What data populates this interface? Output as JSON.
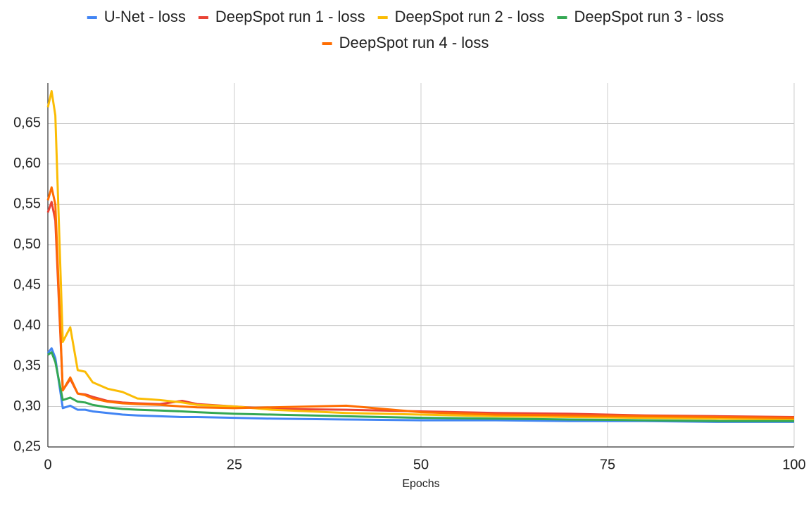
{
  "chart_data": {
    "type": "line",
    "x_label": "Epochs",
    "x": [
      0,
      0.5,
      1,
      2,
      3,
      4,
      5,
      6,
      8,
      10,
      12,
      15,
      18,
      20,
      25,
      30,
      40,
      50,
      60,
      70,
      80,
      90,
      100
    ],
    "series": [
      {
        "name": "U-Net - loss",
        "color": "#4285f4",
        "values": [
          0.366,
          0.372,
          0.36,
          0.298,
          0.301,
          0.296,
          0.296,
          0.294,
          0.292,
          0.29,
          0.289,
          0.288,
          0.287,
          0.287,
          0.286,
          0.285,
          0.284,
          0.283,
          0.283,
          0.282,
          0.282,
          0.281,
          0.281
        ]
      },
      {
        "name": "DeepSpot run 1 - loss",
        "color": "#ea4335",
        "values": [
          0.54,
          0.553,
          0.53,
          0.32,
          0.334,
          0.316,
          0.315,
          0.312,
          0.307,
          0.305,
          0.304,
          0.303,
          0.307,
          0.303,
          0.3,
          0.297,
          0.296,
          0.294,
          0.292,
          0.291,
          0.289,
          0.288,
          0.287
        ]
      },
      {
        "name": "DeepSpot run 2 - loss",
        "color": "#fbbc04",
        "values": [
          0.67,
          0.69,
          0.66,
          0.38,
          0.398,
          0.345,
          0.343,
          0.33,
          0.322,
          0.318,
          0.31,
          0.308,
          0.305,
          0.302,
          0.3,
          0.296,
          0.292,
          0.29,
          0.288,
          0.287,
          0.286,
          0.285,
          0.284
        ]
      },
      {
        "name": "DeepSpot run 3 - loss",
        "color": "#34a853",
        "values": [
          0.364,
          0.367,
          0.355,
          0.308,
          0.311,
          0.306,
          0.305,
          0.302,
          0.299,
          0.297,
          0.296,
          0.295,
          0.294,
          0.293,
          0.291,
          0.29,
          0.288,
          0.286,
          0.285,
          0.284,
          0.283,
          0.282,
          0.282
        ]
      },
      {
        "name": "DeepSpot run 4 - loss",
        "color": "#ff6d01",
        "values": [
          0.555,
          0.571,
          0.55,
          0.32,
          0.336,
          0.316,
          0.314,
          0.31,
          0.306,
          0.304,
          0.303,
          0.302,
          0.3,
          0.299,
          0.298,
          0.299,
          0.301,
          0.293,
          0.29,
          0.289,
          0.288,
          0.287,
          0.286
        ]
      }
    ],
    "xlim": [
      0,
      100
    ],
    "xticks": [
      0,
      25,
      50,
      75,
      100
    ],
    "ylim": [
      0.25,
      0.7
    ],
    "yticks": [
      {
        "value": 0.25,
        "label": "0,25"
      },
      {
        "value": 0.3,
        "label": "0,30"
      },
      {
        "value": 0.35,
        "label": "0,35"
      },
      {
        "value": 0.4,
        "label": "0,40"
      },
      {
        "value": 0.45,
        "label": "0,45"
      },
      {
        "value": 0.5,
        "label": "0,50"
      },
      {
        "value": 0.55,
        "label": "0,55"
      },
      {
        "value": 0.6,
        "label": "0,60"
      },
      {
        "value": 0.65,
        "label": "0,65"
      }
    ],
    "grid": true
  }
}
